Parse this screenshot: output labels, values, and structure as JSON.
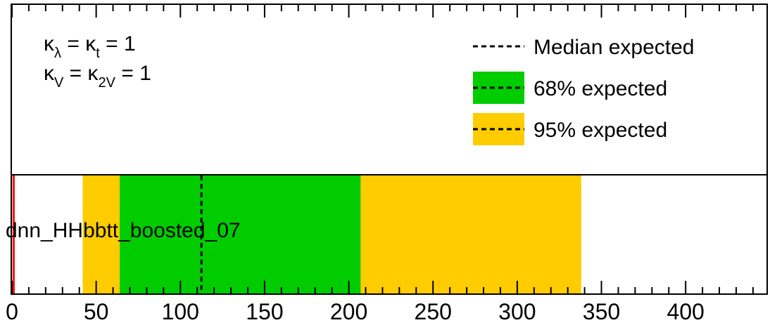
{
  "chart_data": {
    "type": "bar",
    "orientation": "horizontal",
    "xlim": [
      0,
      448
    ],
    "x_ticks": [
      0,
      50,
      100,
      150,
      200,
      250,
      300,
      350,
      400
    ],
    "x_tick_labels": [
      "0",
      "50",
      "100",
      "150",
      "200",
      "250",
      "300",
      "350",
      "400"
    ],
    "categories": [
      "dnn_HHbbtt_boosted_07"
    ],
    "bands": [
      {
        "name": "95% expected",
        "lo": 42,
        "hi": 338,
        "color": "#ffcc00"
      },
      {
        "name": "68% expected",
        "lo": 64,
        "hi": 207,
        "color": "#00cc00"
      }
    ],
    "median_expected": 112.5,
    "reference_line": 1,
    "reference_color": "#ff0000",
    "legend": {
      "placement": "top-right",
      "entries": [
        {
          "label": "Median expected",
          "swatch": "none"
        },
        {
          "label": "68% expected",
          "swatch": "#00cc00"
        },
        {
          "label": "95% expected",
          "swatch": "#ffcc00"
        }
      ]
    },
    "annotation": {
      "line1": {
        "k1": "κ",
        "s1": "λ",
        "mid": " = ",
        "k2": "κ",
        "s2": "t",
        "end": " = 1"
      },
      "line2": {
        "k1": "κ",
        "s1": "V",
        "mid": " = ",
        "k2": "κ",
        "s2": "2V",
        "end": " = 1"
      }
    }
  }
}
